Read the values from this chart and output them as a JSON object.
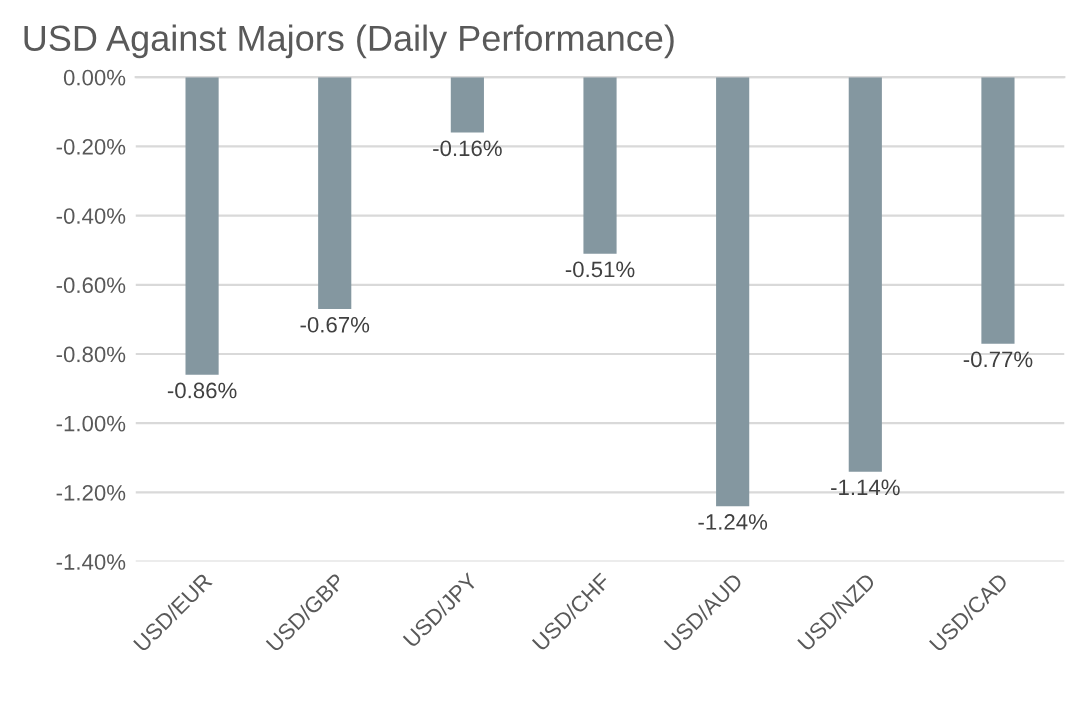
{
  "chart_data": {
    "type": "bar",
    "title": "USD Against Majors (Daily Performance)",
    "categories": [
      "USD/EUR",
      "USD/GBP",
      "USD/JPY",
      "USD/CHF",
      "USD/AUD",
      "USD/NZD",
      "USD/CAD"
    ],
    "values": [
      -0.86,
      -0.67,
      -0.16,
      -0.51,
      -1.24,
      -1.14,
      -0.77
    ],
    "value_labels": [
      "-0.86%",
      "-0.67%",
      "-0.16%",
      "-0.51%",
      "-1.24%",
      "-1.14%",
      "-0.77%"
    ],
    "color": "#8497a0",
    "ylim": [
      -1.4,
      0
    ],
    "yticks": [
      {
        "value": 0,
        "label": "0.00%"
      },
      {
        "value": -0.2,
        "label": "-0.20%"
      },
      {
        "value": -0.4,
        "label": "-0.40%"
      },
      {
        "value": -0.6,
        "label": "-0.60%"
      },
      {
        "value": -0.8,
        "label": "-0.80%"
      },
      {
        "value": -1.0,
        "label": "-1.00%"
      },
      {
        "value": -1.2,
        "label": "-1.20%"
      },
      {
        "value": -1.4,
        "label": "-1.40%"
      }
    ],
    "grid": "y",
    "legend": false
  }
}
